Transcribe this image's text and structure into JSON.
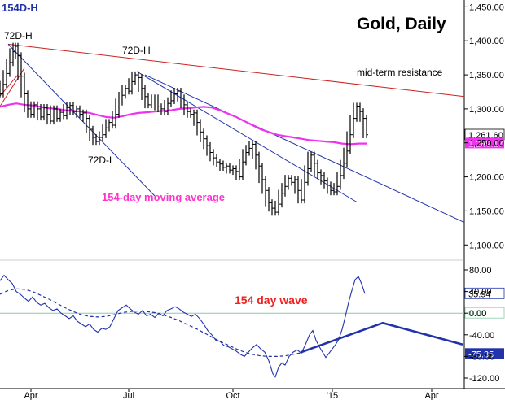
{
  "chart_data": {
    "type": "line",
    "title": "Gold, Daily",
    "corner_label": "154D-H",
    "x_ticks": [
      "Apr",
      "Jul",
      "Oct",
      "'15",
      "Apr"
    ],
    "price_panel": {
      "ylim": [
        1080,
        1460
      ],
      "y_ticks": [
        "1,450.00",
        "1,400.00",
        "1,350.00",
        "1,300.00",
        "1,250.00",
        "1,200.00",
        "1,150.00",
        "1,100.00"
      ],
      "y_tick_values": [
        1450,
        1400,
        1350,
        1300,
        1250,
        1200,
        1150,
        1100
      ],
      "price_series": [
        [
          0,
          1322
        ],
        [
          4,
          1336
        ],
        [
          8,
          1352
        ],
        [
          12,
          1368
        ],
        [
          16,
          1384
        ],
        [
          19,
          1392
        ],
        [
          22,
          1378
        ],
        [
          26,
          1348
        ],
        [
          30,
          1322
        ],
        [
          34,
          1300
        ],
        [
          38,
          1292
        ],
        [
          42,
          1306
        ],
        [
          46,
          1300
        ],
        [
          50,
          1288
        ],
        [
          54,
          1302
        ],
        [
          58,
          1292
        ],
        [
          62,
          1282
        ],
        [
          66,
          1300
        ],
        [
          70,
          1286
        ],
        [
          74,
          1295
        ],
        [
          78,
          1290
        ],
        [
          82,
          1302
        ],
        [
          86,
          1305
        ],
        [
          90,
          1296
        ],
        [
          94,
          1300
        ],
        [
          98,
          1292
        ],
        [
          102,
          1294
        ],
        [
          106,
          1286
        ],
        [
          110,
          1270
        ],
        [
          114,
          1258
        ],
        [
          118,
          1252
        ],
        [
          122,
          1258
        ],
        [
          126,
          1262
        ],
        [
          130,
          1272
        ],
        [
          134,
          1280
        ],
        [
          138,
          1276
        ],
        [
          142,
          1292
        ],
        [
          146,
          1310
        ],
        [
          150,
          1320
        ],
        [
          154,
          1330
        ],
        [
          158,
          1326
        ],
        [
          162,
          1340
        ],
        [
          166,
          1350
        ],
        [
          170,
          1346
        ],
        [
          174,
          1330
        ],
        [
          178,
          1318
        ],
        [
          182,
          1306
        ],
        [
          186,
          1310
        ],
        [
          190,
          1316
        ],
        [
          194,
          1303
        ],
        [
          198,
          1300
        ],
        [
          202,
          1296
        ],
        [
          206,
          1308
        ],
        [
          210,
          1312
        ],
        [
          214,
          1322
        ],
        [
          218,
          1326
        ],
        [
          222,
          1316
        ],
        [
          226,
          1306
        ],
        [
          230,
          1296
        ],
        [
          234,
          1292
        ],
        [
          238,
          1294
        ],
        [
          242,
          1280
        ],
        [
          246,
          1266
        ],
        [
          250,
          1256
        ],
        [
          254,
          1246
        ],
        [
          258,
          1236
        ],
        [
          262,
          1228
        ],
        [
          266,
          1222
        ],
        [
          270,
          1219
        ],
        [
          274,
          1214
        ],
        [
          278,
          1216
        ],
        [
          282,
          1210
        ],
        [
          286,
          1212
        ],
        [
          290,
          1208
        ],
        [
          294,
          1200
        ],
        [
          298,
          1222
        ],
        [
          302,
          1236
        ],
        [
          306,
          1242
        ],
        [
          310,
          1248
        ],
        [
          314,
          1232
        ],
        [
          318,
          1216
        ],
        [
          322,
          1196
        ],
        [
          326,
          1180
        ],
        [
          330,
          1162
        ],
        [
          334,
          1154
        ],
        [
          338,
          1148
        ],
        [
          342,
          1160
        ],
        [
          346,
          1176
        ],
        [
          350,
          1186
        ],
        [
          354,
          1198
        ],
        [
          358,
          1192
        ],
        [
          362,
          1196
        ],
        [
          366,
          1180
        ],
        [
          370,
          1166
        ],
        [
          374,
          1192
        ],
        [
          378,
          1212
        ],
        [
          382,
          1232
        ],
        [
          386,
          1220
        ],
        [
          390,
          1206
        ],
        [
          394,
          1202
        ],
        [
          398,
          1194
        ],
        [
          402,
          1188
        ],
        [
          406,
          1180
        ],
        [
          410,
          1178
        ],
        [
          414,
          1186
        ],
        [
          418,
          1202
        ],
        [
          422,
          1220
        ],
        [
          426,
          1238
        ],
        [
          430,
          1262
        ],
        [
          434,
          1286
        ],
        [
          438,
          1304
        ],
        [
          442,
          1296
        ],
        [
          446,
          1286
        ],
        [
          450,
          1262
        ]
      ],
      "moving_average_154": [
        [
          0,
          1303
        ],
        [
          10,
          1306
        ],
        [
          20,
          1308
        ],
        [
          30,
          1306
        ],
        [
          40,
          1305
        ],
        [
          50,
          1303
        ],
        [
          60,
          1301
        ],
        [
          70,
          1300
        ],
        [
          80,
          1298
        ],
        [
          90,
          1297
        ],
        [
          100,
          1296
        ],
        [
          110,
          1294
        ],
        [
          120,
          1291
        ],
        [
          130,
          1288
        ],
        [
          140,
          1287
        ],
        [
          150,
          1289
        ],
        [
          160,
          1292
        ],
        [
          170,
          1294
        ],
        [
          180,
          1295
        ],
        [
          190,
          1296
        ],
        [
          200,
          1297
        ],
        [
          210,
          1298
        ],
        [
          220,
          1300
        ],
        [
          230,
          1301
        ],
        [
          240,
          1302
        ],
        [
          250,
          1303
        ],
        [
          260,
          1302
        ],
        [
          270,
          1298
        ],
        [
          280,
          1293
        ],
        [
          290,
          1288
        ],
        [
          300,
          1282
        ],
        [
          310,
          1276
        ],
        [
          320,
          1270
        ],
        [
          330,
          1266
        ],
        [
          340,
          1262
        ],
        [
          350,
          1260
        ],
        [
          360,
          1258
        ],
        [
          370,
          1256
        ],
        [
          380,
          1254
        ],
        [
          390,
          1253
        ],
        [
          400,
          1252
        ],
        [
          410,
          1251
        ],
        [
          420,
          1249
        ],
        [
          430,
          1248
        ],
        [
          440,
          1249
        ],
        [
          450,
          1249
        ]
      ],
      "trend_lines": [
        {
          "color": "#cc2222",
          "points": [
            [
              10,
              1395
            ],
            [
              570,
              1318
            ]
          ]
        },
        {
          "color": "#2233aa",
          "points": [
            [
              10,
              1395
            ],
            [
              190,
              1172
            ]
          ]
        },
        {
          "color": "#2233aa",
          "points": [
            [
              168,
              1355
            ],
            [
              438,
              1163
            ]
          ]
        },
        {
          "color": "#2233aa",
          "points": [
            [
              178,
              1350
            ],
            [
              570,
              1133
            ]
          ]
        },
        {
          "color": "#cc2222",
          "points": [
            [
              -2,
              1300
            ],
            [
              30,
              1360
            ]
          ]
        },
        {
          "color": "#cc2222",
          "points": [
            [
              -2,
              1316
            ],
            [
              22,
              1350
            ]
          ]
        }
      ],
      "price_tag": "1,261.60",
      "price_tag_value": 1261.6,
      "ma_tag": "1,249.17",
      "ma_tag_value": 1249.17,
      "annotations": [
        {
          "text": "72D-H",
          "x": 5,
          "y": 48,
          "color": "#000000"
        },
        {
          "text": "72D-H",
          "x": 150,
          "y": 66,
          "color": "#000000"
        },
        {
          "text": "72D-L",
          "x": 108,
          "y": 201,
          "color": "#000000"
        },
        {
          "text": "mid-term resistance",
          "x": 438,
          "y": 93,
          "color": "#000000"
        },
        {
          "text": "154-day moving average",
          "x": 125,
          "y": 247,
          "color": "#ff33cc"
        }
      ]
    },
    "wave_panel": {
      "ylim": [
        -135,
        95
      ],
      "y_ticks": [
        "80.00",
        "40.00",
        "0.00",
        "-40.00",
        "-80.00",
        "-120.00"
      ],
      "y_tick_values": [
        80,
        40,
        0,
        -40,
        -80,
        -120
      ],
      "oscillator": [
        [
          0,
          60
        ],
        [
          5,
          70
        ],
        [
          10,
          62
        ],
        [
          15,
          55
        ],
        [
          20,
          40
        ],
        [
          25,
          35
        ],
        [
          30,
          28
        ],
        [
          35,
          22
        ],
        [
          40,
          30
        ],
        [
          45,
          20
        ],
        [
          50,
          15
        ],
        [
          55,
          18
        ],
        [
          60,
          10
        ],
        [
          65,
          5
        ],
        [
          70,
          8
        ],
        [
          75,
          0
        ],
        [
          80,
          -5
        ],
        [
          85,
          -10
        ],
        [
          90,
          -5
        ],
        [
          95,
          -15
        ],
        [
          100,
          -20
        ],
        [
          105,
          -25
        ],
        [
          110,
          -20
        ],
        [
          115,
          -30
        ],
        [
          120,
          -35
        ],
        [
          125,
          -28
        ],
        [
          130,
          -30
        ],
        [
          135,
          -25
        ],
        [
          140,
          -10
        ],
        [
          145,
          5
        ],
        [
          150,
          10
        ],
        [
          155,
          15
        ],
        [
          160,
          8
        ],
        [
          165,
          2
        ],
        [
          170,
          -2
        ],
        [
          175,
          5
        ],
        [
          180,
          -5
        ],
        [
          185,
          -2
        ],
        [
          190,
          -8
        ],
        [
          195,
          0
        ],
        [
          200,
          -5
        ],
        [
          205,
          5
        ],
        [
          210,
          8
        ],
        [
          215,
          12
        ],
        [
          220,
          8
        ],
        [
          225,
          2
        ],
        [
          230,
          -2
        ],
        [
          235,
          -6
        ],
        [
          240,
          -2
        ],
        [
          245,
          -10
        ],
        [
          250,
          -20
        ],
        [
          255,
          -32
        ],
        [
          260,
          -40
        ],
        [
          265,
          -50
        ],
        [
          270,
          -52
        ],
        [
          275,
          -60
        ],
        [
          280,
          -62
        ],
        [
          285,
          -66
        ],
        [
          290,
          -70
        ],
        [
          295,
          -76
        ],
        [
          300,
          -80
        ],
        [
          305,
          -72
        ],
        [
          310,
          -64
        ],
        [
          315,
          -58
        ],
        [
          320,
          -66
        ],
        [
          325,
          -72
        ],
        [
          330,
          -88
        ],
        [
          335,
          -112
        ],
        [
          338,
          -118
        ],
        [
          342,
          -100
        ],
        [
          346,
          -92
        ],
        [
          350,
          -96
        ],
        [
          355,
          -80
        ],
        [
          360,
          -72
        ],
        [
          365,
          -68
        ],
        [
          370,
          -74
        ],
        [
          375,
          -58
        ],
        [
          380,
          -40
        ],
        [
          384,
          -32
        ],
        [
          388,
          -50
        ],
        [
          392,
          -62
        ],
        [
          396,
          -72
        ],
        [
          400,
          -82
        ],
        [
          404,
          -74
        ],
        [
          408,
          -66
        ],
        [
          412,
          -58
        ],
        [
          416,
          -48
        ],
        [
          420,
          -30
        ],
        [
          424,
          -6
        ],
        [
          428,
          20
        ],
        [
          432,
          42
        ],
        [
          436,
          62
        ],
        [
          440,
          68
        ],
        [
          444,
          54
        ],
        [
          448,
          36
        ]
      ],
      "cycle_wave": [
        [
          0,
          35
        ],
        [
          10,
          42
        ],
        [
          20,
          45
        ],
        [
          30,
          44
        ],
        [
          40,
          40
        ],
        [
          50,
          33
        ],
        [
          60,
          26
        ],
        [
          70,
          18
        ],
        [
          80,
          10
        ],
        [
          90,
          3
        ],
        [
          100,
          -3
        ],
        [
          110,
          -6
        ],
        [
          120,
          -7
        ],
        [
          130,
          -6
        ],
        [
          140,
          -3
        ],
        [
          150,
          1
        ],
        [
          160,
          3
        ],
        [
          170,
          4
        ],
        [
          180,
          3
        ],
        [
          190,
          1
        ],
        [
          200,
          -3
        ],
        [
          210,
          -8
        ],
        [
          220,
          -14
        ],
        [
          230,
          -21
        ],
        [
          240,
          -28
        ],
        [
          250,
          -36
        ],
        [
          260,
          -44
        ],
        [
          270,
          -52
        ],
        [
          280,
          -59
        ],
        [
          290,
          -66
        ],
        [
          300,
          -72
        ],
        [
          310,
          -76
        ],
        [
          320,
          -79
        ],
        [
          330,
          -80
        ],
        [
          340,
          -80
        ],
        [
          350,
          -79
        ],
        [
          360,
          -76
        ],
        [
          370,
          -73
        ]
      ],
      "projection": [
        [
          370,
          -72
        ],
        [
          470,
          -18
        ],
        [
          568,
          -58
        ]
      ],
      "osc_tag": "35.94",
      "osc_tag_value": 35.94,
      "zero_tag": "0.00",
      "zero_tag_value": 0,
      "wave_tag": "-75.35",
      "wave_tag_value": -75.35,
      "label": "154 day wave"
    },
    "colors": {
      "price": "#000000",
      "moving_average": "#ee33ee",
      "trend_blue": "#2233aa",
      "trend_red": "#cc2222",
      "oscillator": "#2233aa",
      "zero_line": "#88ccaa",
      "wave_label": "#ee2222",
      "title": "#000000",
      "corner_label": "#2233aa",
      "ma_label": "#ff33cc"
    }
  }
}
